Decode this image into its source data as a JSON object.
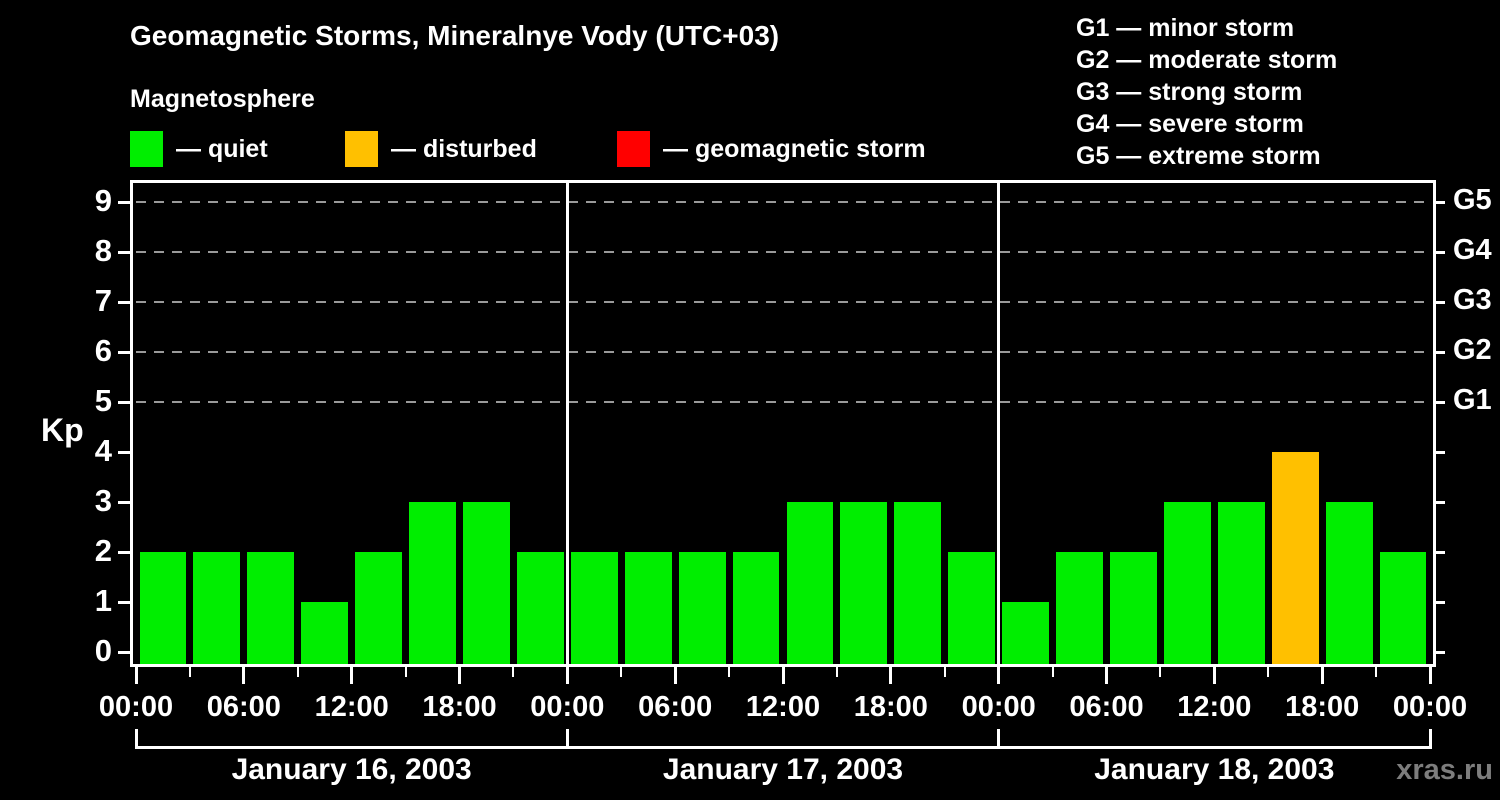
{
  "title": "Geomagnetic Storms, Mineralnye Vody (UTC+03)",
  "subtitle": "Magnetosphere",
  "legend": {
    "items": [
      {
        "name": "quiet",
        "label": "— quiet",
        "color": "#00ee00"
      },
      {
        "name": "disturbed",
        "label": "— disturbed",
        "color": "#ffc000"
      },
      {
        "name": "storm",
        "label": "— geomagnetic storm",
        "color": "#ff0000"
      }
    ]
  },
  "storm_scale_legend": [
    "G1 — minor storm",
    "G2 — moderate storm",
    "G3 — strong storm",
    "G4 — severe storm",
    "G5 — extreme storm"
  ],
  "watermark": "xras.ru",
  "chart_data": {
    "type": "bar",
    "title": "Geomagnetic Storms, Mineralnye Vody (UTC+03)",
    "ylabel": "Kp",
    "ylim": [
      -0.24,
      9.44
    ],
    "yticks": [
      0,
      1,
      2,
      3,
      4,
      5,
      6,
      7,
      8,
      9
    ],
    "gridlines_at": [
      5,
      6,
      7,
      8,
      9
    ],
    "grid_style": "dashed",
    "right_axis_labels": [
      {
        "value": 5,
        "label": "G1"
      },
      {
        "value": 6,
        "label": "G2"
      },
      {
        "value": 7,
        "label": "G3"
      },
      {
        "value": 8,
        "label": "G4"
      },
      {
        "value": 9,
        "label": "G5"
      }
    ],
    "interval_hours": 3,
    "x_tick_labels_cycle": [
      "00:00",
      "06:00",
      "12:00",
      "18:00"
    ],
    "days": [
      {
        "date": "January 16, 2003",
        "values": [
          2,
          2,
          2,
          1,
          2,
          3,
          3,
          2
        ]
      },
      {
        "date": "January 17, 2003",
        "values": [
          2,
          2,
          2,
          2,
          3,
          3,
          3,
          2
        ]
      },
      {
        "date": "January 18, 2003",
        "values": [
          1,
          2,
          2,
          3,
          3,
          4,
          3,
          2
        ]
      }
    ],
    "colors": {
      "quiet": "#00ee00",
      "disturbed": "#ffc000",
      "storm": "#ff0000"
    },
    "color_rule": {
      "disturbed_at": 4,
      "storm_at": 5
    }
  }
}
